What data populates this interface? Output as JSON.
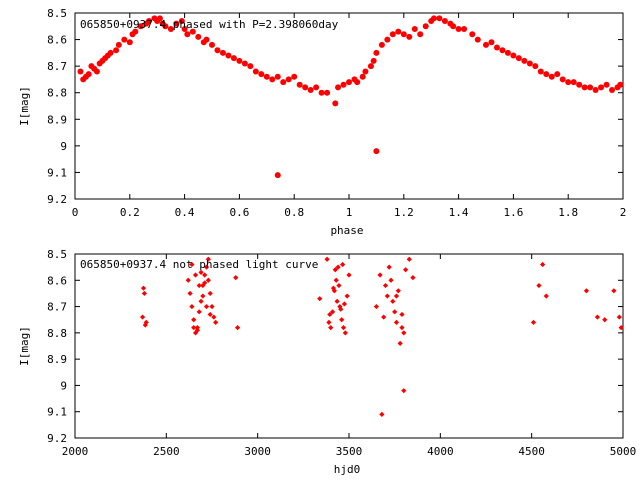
{
  "chart_data": [
    {
      "type": "scatter",
      "title": "065850+0937.4 phased with P=2.398060day",
      "xlabel": "phase",
      "ylabel": "I[mag]",
      "xlim": [
        0,
        2
      ],
      "ylim": [
        9.2,
        8.5
      ],
      "y_inverted": true,
      "xticks": [
        0,
        0.2,
        0.4,
        0.6,
        0.8,
        1,
        1.2,
        1.4,
        1.6,
        1.8,
        2
      ],
      "xtick_labels": [
        "0",
        "0.2",
        "0.4",
        "0.6",
        "0.8",
        "1",
        "1.2",
        "1.4",
        "1.6",
        "1.8",
        "2"
      ],
      "yticks": [
        8.5,
        8.6,
        8.7,
        8.8,
        8.9,
        9,
        9.1,
        9.2
      ],
      "ytick_labels": [
        "8.5",
        "8.6",
        "8.7",
        "8.8",
        "8.9",
        "9",
        "9.1",
        "9.2"
      ],
      "marker_color": "#ff0000",
      "marker": "filled-circle",
      "x": [
        0.02,
        0.03,
        0.04,
        0.05,
        0.06,
        0.07,
        0.08,
        0.09,
        0.1,
        0.11,
        0.12,
        0.13,
        0.15,
        0.16,
        0.18,
        0.2,
        0.21,
        0.22,
        0.24,
        0.26,
        0.27,
        0.29,
        0.3,
        0.31,
        0.32,
        0.33,
        0.35,
        0.37,
        0.39,
        0.4,
        0.41,
        0.43,
        0.45,
        0.47,
        0.48,
        0.5,
        0.52,
        0.54,
        0.56,
        0.58,
        0.6,
        0.62,
        0.64,
        0.66,
        0.68,
        0.7,
        0.72,
        0.74,
        0.76,
        0.78,
        0.8,
        0.82,
        0.84,
        0.86,
        0.88,
        0.9,
        0.92,
        0.95,
        0.96,
        0.98,
        1.0,
        1.02,
        1.03,
        1.05,
        1.06,
        1.08,
        1.09,
        1.1,
        1.12,
        1.14,
        1.16,
        1.18,
        1.2,
        1.22,
        1.24,
        1.26,
        1.28,
        1.3,
        1.31,
        1.33,
        1.35,
        1.37,
        1.38,
        1.4,
        1.42,
        1.45,
        1.47,
        1.5,
        1.52,
        1.54,
        1.56,
        1.58,
        1.6,
        1.62,
        1.64,
        1.66,
        1.68,
        1.7,
        1.72,
        1.74,
        1.76,
        1.78,
        1.8,
        1.82,
        1.84,
        1.86,
        1.88,
        1.9,
        1.92,
        1.94,
        1.96,
        1.98,
        1.99,
        0.74,
        1.1
      ],
      "y": [
        8.72,
        8.75,
        8.74,
        8.73,
        8.7,
        8.71,
        8.72,
        8.69,
        8.68,
        8.67,
        8.66,
        8.65,
        8.64,
        8.62,
        8.6,
        8.61,
        8.58,
        8.57,
        8.55,
        8.54,
        8.53,
        8.52,
        8.53,
        8.52,
        8.54,
        8.55,
        8.56,
        8.54,
        8.53,
        8.56,
        8.58,
        8.57,
        8.59,
        8.61,
        8.6,
        8.62,
        8.64,
        8.65,
        8.66,
        8.67,
        8.68,
        8.69,
        8.7,
        8.72,
        8.73,
        8.74,
        8.75,
        8.74,
        8.76,
        8.75,
        8.74,
        8.77,
        8.78,
        8.79,
        8.78,
        8.8,
        8.8,
        8.84,
        8.78,
        8.77,
        8.76,
        8.75,
        8.76,
        8.74,
        8.72,
        8.7,
        8.68,
        8.65,
        8.62,
        8.6,
        8.58,
        8.57,
        8.58,
        8.59,
        8.56,
        8.58,
        8.55,
        8.53,
        8.52,
        8.52,
        8.53,
        8.54,
        8.55,
        8.56,
        8.56,
        8.58,
        8.6,
        8.62,
        8.61,
        8.63,
        8.64,
        8.65,
        8.66,
        8.67,
        8.68,
        8.69,
        8.7,
        8.72,
        8.73,
        8.74,
        8.73,
        8.75,
        8.76,
        8.76,
        8.77,
        8.78,
        8.78,
        8.79,
        8.78,
        8.77,
        8.79,
        8.78,
        8.77,
        9.11,
        9.02
      ]
    },
    {
      "type": "scatter",
      "title": "065850+0937.4 not phased light curve",
      "xlabel": "hjd0",
      "ylabel": "I[mag]",
      "xlim": [
        2000,
        5000
      ],
      "ylim": [
        9.2,
        8.5
      ],
      "y_inverted": true,
      "xticks": [
        2000,
        2500,
        3000,
        3500,
        4000,
        4500,
        5000
      ],
      "xtick_labels": [
        "2000",
        "2500",
        "3000",
        "3500",
        "4000",
        "4500",
        "5000"
      ],
      "yticks": [
        8.5,
        8.6,
        8.7,
        8.8,
        8.9,
        9,
        9.1,
        9.2
      ],
      "ytick_labels": [
        "8.5",
        "8.6",
        "8.7",
        "8.8",
        "8.9",
        "9",
        "9.1",
        "9.2"
      ],
      "marker_color": "#ff0000",
      "marker": "diamond",
      "x": [
        2370,
        2375,
        2380,
        2385,
        2390,
        2620,
        2630,
        2640,
        2650,
        2660,
        2670,
        2680,
        2690,
        2700,
        2710,
        2720,
        2730,
        2740,
        2750,
        2760,
        2770,
        2640,
        2660,
        2680,
        2700,
        2720,
        2740,
        2650,
        2670,
        2690,
        2710,
        2730,
        2880,
        2890,
        3340,
        3380,
        3390,
        3400,
        3410,
        3420,
        3430,
        3440,
        3450,
        3460,
        3470,
        3480,
        3490,
        3500,
        3395,
        3415,
        3435,
        3455,
        3475,
        3425,
        3445,
        3465,
        3650,
        3670,
        3690,
        3710,
        3730,
        3750,
        3770,
        3790,
        3810,
        3830,
        3850,
        3700,
        3720,
        3740,
        3760,
        3780,
        3800,
        3680,
        3760,
        3790,
        3800,
        4510,
        4540,
        4560,
        4580,
        4800,
        4860,
        4900,
        4950,
        4980,
        4990
      ],
      "y": [
        8.74,
        8.63,
        8.65,
        8.77,
        8.76,
        8.6,
        8.65,
        8.7,
        8.75,
        8.8,
        8.78,
        8.72,
        8.68,
        8.62,
        8.58,
        8.55,
        8.6,
        8.65,
        8.7,
        8.74,
        8.76,
        8.54,
        8.58,
        8.62,
        8.66,
        8.7,
        8.73,
        8.78,
        8.79,
        8.57,
        8.61,
        8.52,
        8.59,
        8.78,
        8.67,
        8.52,
        8.76,
        8.78,
        8.72,
        8.64,
        8.6,
        8.55,
        8.7,
        8.75,
        8.78,
        8.8,
        8.66,
        8.58,
        8.73,
        8.63,
        8.68,
        8.71,
        8.69,
        8.56,
        8.62,
        8.54,
        8.7,
        8.58,
        8.74,
        8.66,
        8.6,
        8.72,
        8.64,
        8.78,
        8.56,
        8.52,
        8.59,
        8.62,
        8.55,
        8.68,
        8.76,
        8.84,
        8.8,
        9.11,
        8.66,
        8.73,
        9.02,
        8.76,
        8.62,
        8.54,
        8.66,
        8.64,
        8.74,
        8.75,
        8.64,
        8.74,
        8.78
      ]
    }
  ]
}
